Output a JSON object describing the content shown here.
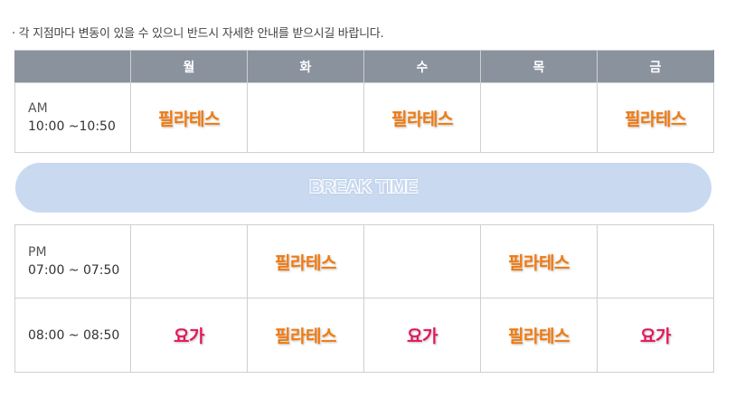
{
  "notice": "· 각 지점마다 변동이 있을 수 있으니 반드시 자세한 안내를 받으시길 바랍니다.",
  "days": [
    "월",
    "화",
    "수",
    "목",
    "금"
  ],
  "am": {
    "period": "AM",
    "time": "10:00 ~10:50",
    "classes": [
      "필라테스",
      "",
      "필라테스",
      "",
      "필라테스"
    ]
  },
  "break_label": "BREAK TIME",
  "pm": {
    "rows": [
      {
        "period": "PM",
        "time": "07:00 ~ 07:50",
        "classes": [
          "",
          "필라테스",
          "",
          "필라테스",
          ""
        ]
      },
      {
        "period": "",
        "time": "08:00 ~ 08:50",
        "classes": [
          "요가",
          "필라테스",
          "요가",
          "필라테스",
          "요가"
        ]
      }
    ]
  },
  "colors": {
    "header_bg": "#8a929e",
    "pilates": "#f07a10",
    "yoga": "#e3155e",
    "break_bar": "#c9d9f0"
  }
}
